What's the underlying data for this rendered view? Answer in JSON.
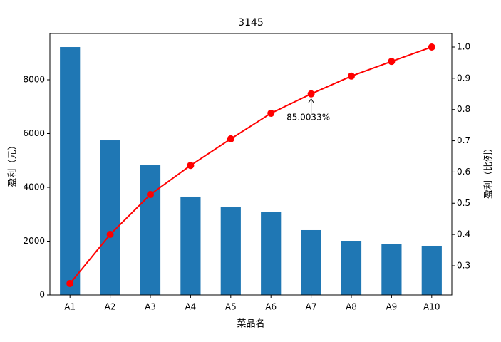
{
  "chart_data": {
    "type": "pareto",
    "title": "3145",
    "x_label": "菜品名",
    "y_label": "盈利（元）",
    "y2_label": "盈利（比例）",
    "categories": [
      "A1",
      "A2",
      "A3",
      "A4",
      "A5",
      "A6",
      "A7",
      "A8",
      "A9",
      "A10"
    ],
    "series": [
      {
        "type": "bar",
        "color": "#1f77b4",
        "values": [
          9218,
          5748,
          4821,
          3656,
          3258,
          3073,
          2411,
          2013,
          1907,
          1828
        ]
      },
      {
        "type": "line",
        "axis": "y2",
        "color": "#ff0000",
        "values": [
          0.243,
          0.4003,
          0.528,
          0.621,
          0.706,
          0.788,
          0.850033,
          0.907,
          0.954,
          1.0
        ]
      }
    ],
    "ylim": [
      0,
      9722
    ],
    "yticks": [
      0,
      2000,
      4000,
      6000,
      8000
    ],
    "y2lim": [
      0.2065,
      1.0433
    ],
    "y2ticks": [
      0.3,
      0.4,
      0.5,
      0.6,
      0.7,
      0.8,
      0.9,
      {
        "value": 1.0,
        "label": "1.0"
      }
    ],
    "annotations": [
      {
        "text": "85.0033%",
        "x": "A7"
      }
    ]
  }
}
